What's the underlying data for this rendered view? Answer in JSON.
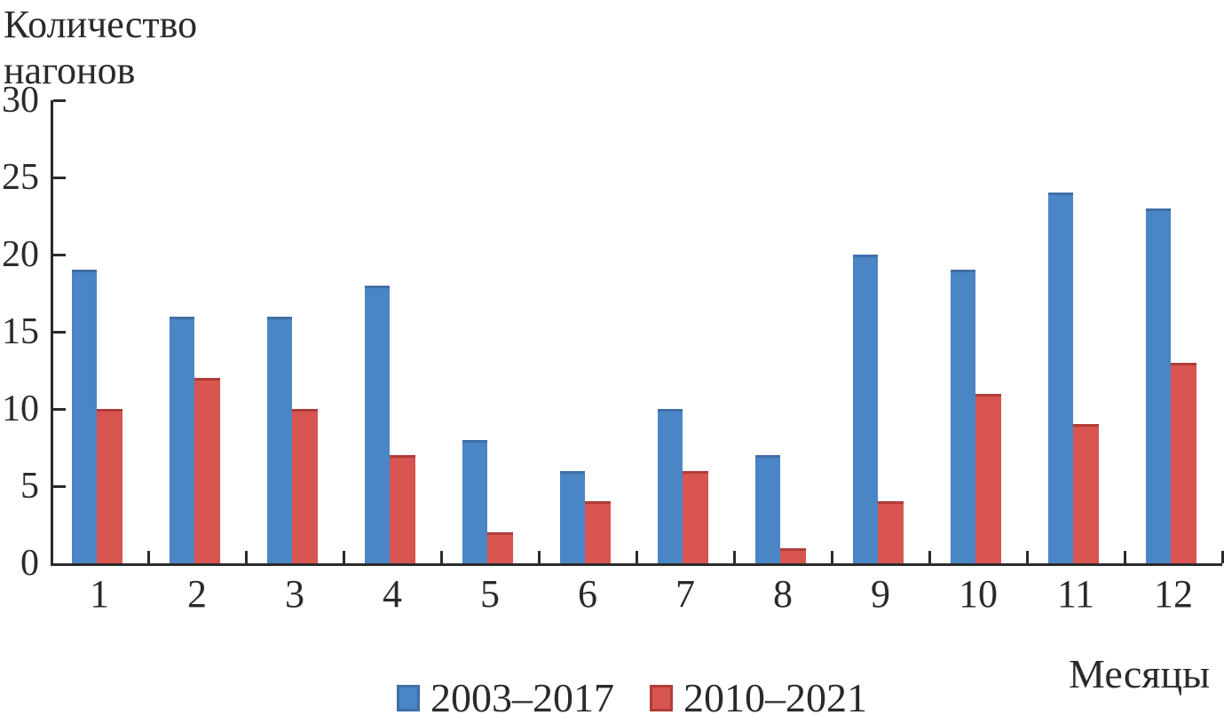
{
  "figure": {
    "y_axis_title_line1": "Количество",
    "y_axis_title_line2": "нагонов",
    "x_axis_title": "Месяцы"
  },
  "colors": {
    "axis": "#2b2b2b",
    "text": "#2a2a2a",
    "background": "#ffffff"
  },
  "chart_data": {
    "type": "bar",
    "title": "Количество нагонов",
    "xlabel": "Месяцы",
    "ylabel": "Количество нагонов",
    "categories": [
      "1",
      "2",
      "3",
      "4",
      "5",
      "6",
      "7",
      "8",
      "9",
      "10",
      "11",
      "12"
    ],
    "series": [
      {
        "name": "2003–2017",
        "color": "#4a85c6",
        "edge_color": "#3f6fa5",
        "values": [
          19,
          16,
          16,
          18,
          8,
          6,
          10,
          7,
          20,
          19,
          24,
          23
        ]
      },
      {
        "name": "2010–2021",
        "color": "#d75450",
        "edge_color": "#b03c38",
        "values": [
          10,
          12,
          10,
          7,
          2,
          4,
          6,
          1,
          4,
          11,
          9,
          13
        ]
      }
    ],
    "ylim": [
      0,
      30
    ],
    "yticks": [
      0,
      5,
      10,
      15,
      20,
      25,
      30
    ],
    "grid": false,
    "legend_position": "bottom"
  }
}
